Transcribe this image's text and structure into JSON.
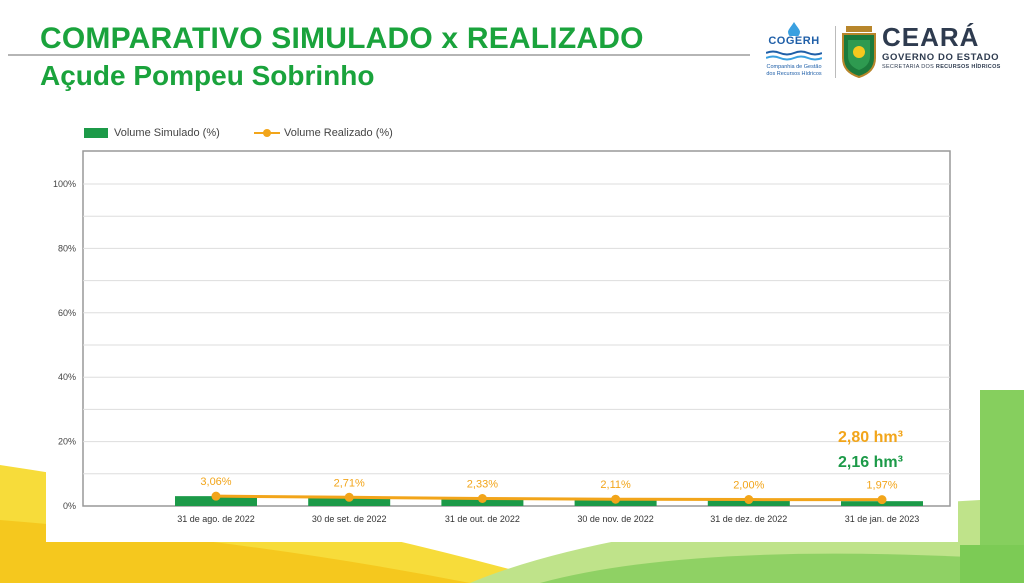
{
  "header": {
    "title_line1": "COMPARATIVO SIMULADO x REALIZADO",
    "title_line2": "Açude Pompeu Sobrinho"
  },
  "logos": {
    "cogerh_name": "COGERH",
    "cogerh_sub_line1": "Companhia de Gestão",
    "cogerh_sub_line2": "dos Recursos Hídricos",
    "state_name": "CEARÁ",
    "state_gov": "GOVERNO DO ESTADO",
    "state_secretariat_prefix": "SECRETARIA DOS",
    "state_secretariat_name": "RECURSOS HÍDRICOS"
  },
  "colors": {
    "title": "#1aa33c",
    "bar": "#1c9a48",
    "line": "#f2a51a",
    "grid": "#dddddd"
  },
  "chart_data": {
    "type": "bar",
    "categories": [
      "31 de ago. de 2022",
      "30 de set. de 2022",
      "31 de out. de 2022",
      "30 de nov. de 2022",
      "31 de dez. de 2022",
      "31 de jan. de 2023"
    ],
    "series": [
      {
        "name": "Volume Simulado (%)",
        "type": "bar",
        "values": [
          3.06,
          2.7,
          2.4,
          2.1,
          1.8,
          1.5
        ]
      },
      {
        "name": "Volume Realizado (%)",
        "type": "line",
        "values": [
          3.06,
          2.71,
          2.33,
          2.11,
          2.0,
          1.97
        ],
        "labels": [
          "3,06%",
          "2,71%",
          "2,33%",
          "2,11%",
          "2,00%",
          "1,97%"
        ]
      }
    ],
    "yticks": [
      "0%",
      "20%",
      "40%",
      "60%",
      "80%",
      "100%"
    ],
    "ylim": [
      0,
      100
    ],
    "grid": true,
    "legend": "top-left",
    "annotations": [
      {
        "text": "2,80 hm³",
        "color": "#f2a51a"
      },
      {
        "text": "2,16 hm³",
        "color": "#1c9a48"
      }
    ]
  }
}
